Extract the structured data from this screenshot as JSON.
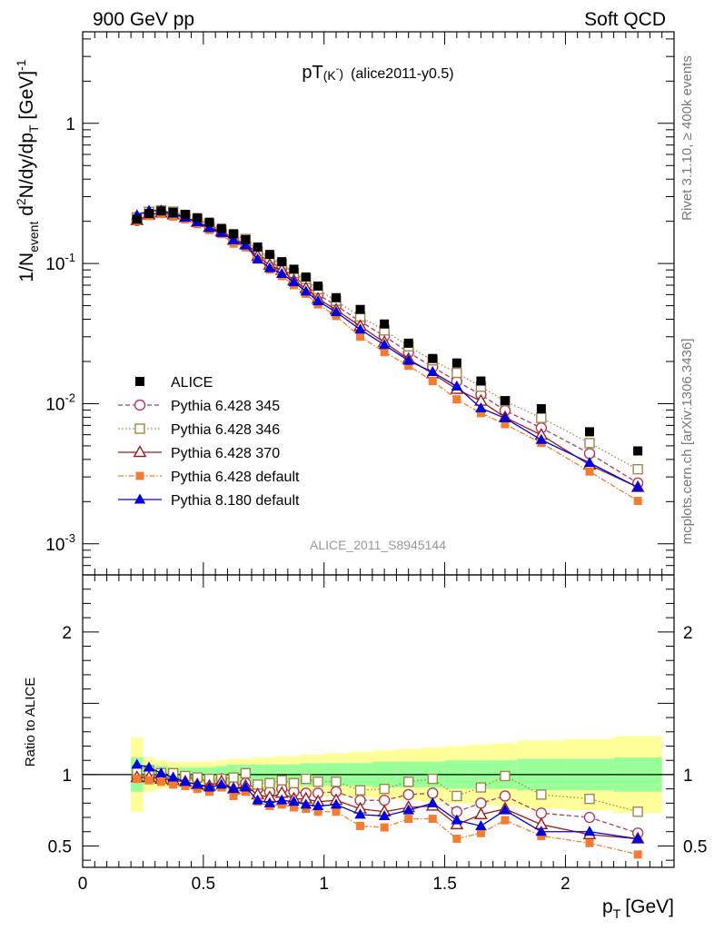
{
  "header": {
    "left": "900 GeV pp",
    "right": "Soft QCD"
  },
  "side": {
    "rivet": "Rivet 3.1.10, ≥ 400k events",
    "mcplots": "mcplots.cern.ch [arXiv:1306.3436]"
  },
  "chart_data": {
    "type": "scatter",
    "title_main": "pT",
    "title_sub": "(K",
    "title_sup": "-",
    "title_close": ")",
    "title_extra": "(alice2011-y0.5)",
    "analysis": "ALICE_2011_S8945144",
    "xlabel": "p",
    "xlabel_sub": "T",
    "xlabel_unit": "[GeV]",
    "ylabel": "1/N_event d²N/dy/dp_T [GeV]⁻¹",
    "ratio_ylabel": "Ratio to ALICE",
    "xlim": [
      0,
      2.45
    ],
    "ylim_main": [
      0.0006,
      4.5
    ],
    "ylog": true,
    "ylim_ratio": [
      0.35,
      2.4
    ],
    "x_ticks": [
      0,
      0.5,
      1,
      1.5,
      2
    ],
    "x_tick_labels": [
      "0",
      "0.5",
      "1",
      "1.5",
      "2"
    ],
    "y_ticks_main": [
      "1",
      "10^-1",
      "10^-2",
      "10^-3"
    ],
    "y_ticks_ratio": [
      "0.5",
      "1",
      "2"
    ],
    "x": [
      0.225,
      0.275,
      0.325,
      0.375,
      0.425,
      0.475,
      0.525,
      0.575,
      0.625,
      0.675,
      0.725,
      0.775,
      0.825,
      0.875,
      0.925,
      0.975,
      1.05,
      1.15,
      1.25,
      1.35,
      1.45,
      1.55,
      1.65,
      1.75,
      1.9,
      2.1,
      2.3
    ],
    "bin_edges": [
      0.2,
      0.25,
      0.3,
      0.35,
      0.4,
      0.45,
      0.5,
      0.55,
      0.6,
      0.65,
      0.7,
      0.75,
      0.8,
      0.85,
      0.9,
      0.95,
      1.0,
      1.1,
      1.2,
      1.3,
      1.4,
      1.5,
      1.6,
      1.7,
      1.8,
      2.0,
      2.2,
      2.4
    ],
    "data": {
      "name": "ALICE",
      "values": [
        0.207,
        0.227,
        0.237,
        0.232,
        0.224,
        0.212,
        0.197,
        0.178,
        0.163,
        0.148,
        0.131,
        0.116,
        0.103,
        0.091,
        0.08,
        0.069,
        0.057,
        0.047,
        0.037,
        0.027,
        0.021,
        0.0195,
        0.0145,
        0.0105,
        0.0092,
        0.0063,
        0.0046
      ]
    },
    "band_inner": [
      0.12,
      0.07,
      0.06,
      0.05,
      0.05,
      0.05,
      0.05,
      0.06,
      0.07,
      0.07,
      0.07,
      0.07,
      0.07,
      0.07,
      0.08,
      0.08,
      0.08,
      0.08,
      0.09,
      0.09,
      0.09,
      0.1,
      0.1,
      0.1,
      0.11,
      0.11,
      0.12
    ],
    "band_outer": [
      0.26,
      0.12,
      0.1,
      0.09,
      0.09,
      0.09,
      0.09,
      0.1,
      0.11,
      0.11,
      0.12,
      0.12,
      0.13,
      0.13,
      0.14,
      0.14,
      0.15,
      0.16,
      0.17,
      0.18,
      0.19,
      0.2,
      0.21,
      0.22,
      0.24,
      0.25,
      0.27
    ],
    "colors": {
      "band_inner": "#99ff99",
      "band_outer": "#ffff99"
    },
    "series": [
      {
        "name": "Pythia 6.428 345",
        "color": "#b03a5a",
        "marker": "open-circle",
        "dash": "5,3",
        "ratio": [
          0.98,
          0.99,
          0.98,
          0.97,
          0.98,
          0.97,
          0.95,
          0.97,
          0.92,
          0.94,
          0.9,
          0.88,
          0.9,
          0.88,
          0.87,
          0.87,
          0.88,
          0.82,
          0.82,
          0.86,
          0.87,
          0.74,
          0.8,
          0.85,
          0.73,
          0.7,
          0.59
        ]
      },
      {
        "name": "Pythia 6.428 346",
        "color": "#a0864a",
        "marker": "open-square",
        "dash": "1.5,2.5",
        "ratio": [
          1.03,
          1.03,
          1.01,
          1.01,
          0.99,
          0.98,
          0.97,
          0.97,
          0.98,
          1.01,
          0.93,
          0.94,
          0.96,
          0.94,
          0.97,
          0.95,
          0.95,
          0.89,
          0.9,
          0.95,
          0.97,
          0.85,
          0.91,
          0.99,
          0.86,
          0.83,
          0.74
        ]
      },
      {
        "name": "Pythia 6.428 370",
        "color": "#9b1b1b",
        "marker": "open-triangle",
        "dash": "",
        "ratio": [
          0.98,
          0.98,
          0.97,
          0.96,
          0.95,
          0.93,
          0.92,
          0.95,
          0.9,
          0.92,
          0.86,
          0.84,
          0.87,
          0.83,
          0.83,
          0.81,
          0.82,
          0.76,
          0.74,
          0.77,
          0.78,
          0.65,
          0.72,
          0.76,
          0.65,
          0.58,
          0.55
        ]
      },
      {
        "name": "Pythia 6.428 default",
        "color": "#f47c30",
        "marker": "filled-square",
        "dash": "6,2,1.5,2",
        "ratio": [
          0.97,
          0.96,
          0.95,
          0.93,
          0.92,
          0.9,
          0.88,
          0.91,
          0.85,
          0.88,
          0.81,
          0.78,
          0.79,
          0.77,
          0.76,
          0.74,
          0.74,
          0.64,
          0.63,
          0.69,
          0.69,
          0.55,
          0.59,
          0.68,
          0.57,
          0.52,
          0.44
        ]
      },
      {
        "name": "Pythia 8.180 default",
        "color": "#0000dd",
        "marker": "filled-triangle",
        "dash": "",
        "ratio": [
          1.07,
          1.05,
          1.01,
          0.98,
          0.95,
          0.93,
          0.91,
          0.93,
          0.9,
          0.91,
          0.82,
          0.8,
          0.82,
          0.81,
          0.79,
          0.78,
          0.79,
          0.72,
          0.71,
          0.75,
          0.8,
          0.68,
          0.64,
          0.75,
          0.6,
          0.6,
          0.55
        ]
      }
    ]
  }
}
